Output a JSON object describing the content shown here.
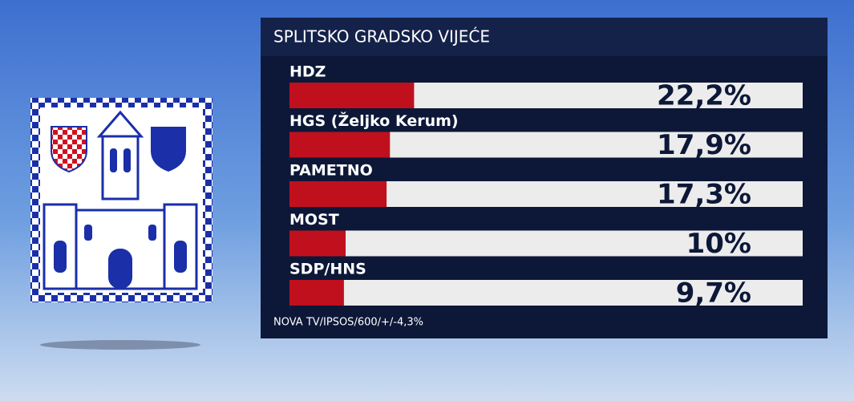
{
  "chart_data": {
    "type": "bar",
    "orientation": "horizontal",
    "title": "SPLITSKO GRADSKO VIJEĆE",
    "categories": [
      "HDZ",
      "HGS (Željko Kerum)",
      "PAMETNO",
      "MOST",
      "SDP/HNS"
    ],
    "values": [
      22.2,
      17.9,
      17.3,
      10,
      9.7
    ],
    "value_labels": [
      "22,2%",
      "17,9%",
      "17,3%",
      "10%",
      "9,7%"
    ],
    "color": "#c0101e",
    "source": "NOVA TV/IPSOS/600/+/-4,3%"
  }
}
